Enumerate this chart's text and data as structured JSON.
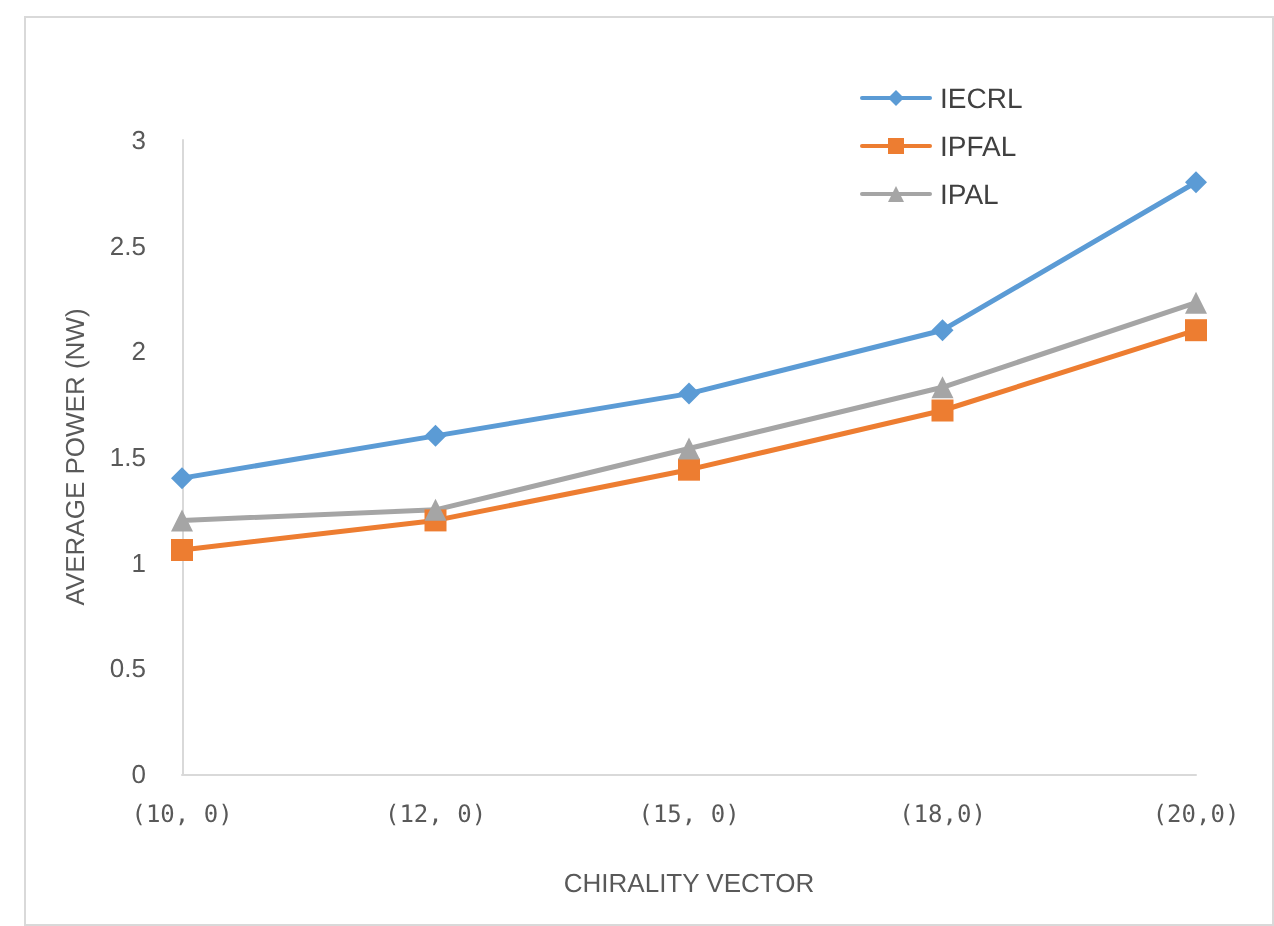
{
  "chart_data": {
    "type": "line",
    "xlabel": "CHIRALITY VECTOR",
    "ylabel": "AVERAGE POWER (NW)",
    "categories": [
      "(10, 0)",
      "(12, 0)",
      "(15, 0)",
      "(18,0)",
      "(20,0)"
    ],
    "series": [
      {
        "name": "IECRL",
        "color": "#5b9bd5",
        "marker": "diamond",
        "values": [
          1.4,
          1.6,
          1.8,
          2.1,
          2.8
        ]
      },
      {
        "name": "IPFAL",
        "color": "#ed7d31",
        "marker": "square",
        "values": [
          1.06,
          1.2,
          1.44,
          1.72,
          2.1
        ]
      },
      {
        "name": "IPAL",
        "color": "#a5a5a5",
        "marker": "triangle",
        "values": [
          1.2,
          1.25,
          1.54,
          1.83,
          2.23
        ]
      }
    ],
    "ylim": [
      0,
      3
    ],
    "yticks": [
      0,
      0.5,
      1,
      1.5,
      2,
      2.5,
      3
    ],
    "grid": false,
    "legend": "top right",
    "line_style": "solid"
  }
}
